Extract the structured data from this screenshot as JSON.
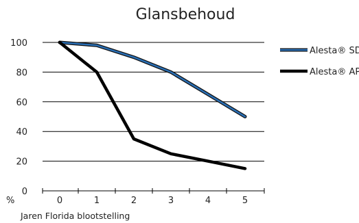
{
  "chart_data": {
    "type": "line",
    "title": "Glansbehoud",
    "xlabel": "Jaren Florida blootstelling",
    "ylabel": "%",
    "x": [
      0,
      1,
      2,
      3,
      4,
      5
    ],
    "xlim": [
      0,
      5
    ],
    "ylim": [
      0,
      100
    ],
    "yticks": [
      0,
      20,
      40,
      60,
      80,
      100
    ],
    "grid": "horizontal",
    "legend_position": "right",
    "series": [
      {
        "name": "Alesta® SD",
        "values": [
          100,
          98,
          90,
          80,
          65,
          50
        ],
        "color": "#2a6fb5",
        "style": "double-outline"
      },
      {
        "name": "Alesta® AP",
        "values": [
          100,
          80,
          35,
          25,
          20,
          15
        ],
        "color": "#000000",
        "style": "solid-thick"
      }
    ]
  }
}
